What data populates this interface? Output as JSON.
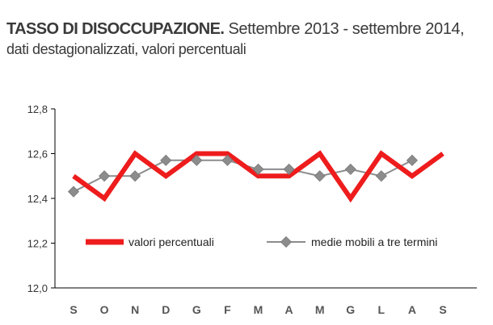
{
  "header": {
    "title_bold": "TASSO DI DISOCCUPAZIONE.",
    "title_rest": " Settembre 2013 - settembre 2014,",
    "subtitle": "dati destagionalizzati, valori percentuali"
  },
  "colors": {
    "percent_series": "#ee1c1c",
    "moving_avg_series": "#8c8c8c",
    "axis": "#000000"
  },
  "chart_data": {
    "type": "line",
    "title": "TASSO DI DISOCCUPAZIONE. Settembre 2013 - settembre 2014, dati destagionalizzati, valori percentuali",
    "categories": [
      "S",
      "O",
      "N",
      "D",
      "G",
      "F",
      "M",
      "A",
      "M",
      "G",
      "L",
      "A",
      "S"
    ],
    "ylim": [
      12.0,
      12.8
    ],
    "yticks": [
      12.0,
      12.2,
      12.4,
      12.6,
      12.8
    ],
    "ytick_labels": [
      "12,0",
      "12,2",
      "12,4",
      "12,6",
      "12,8"
    ],
    "grid": false,
    "legend": "center",
    "series": [
      {
        "name": "valori percentuali",
        "values": [
          12.5,
          12.4,
          12.6,
          12.5,
          12.6,
          12.6,
          12.5,
          12.5,
          12.6,
          12.4,
          12.6,
          12.5,
          12.6
        ]
      },
      {
        "name": "medie mobili a tre termini",
        "values": [
          12.43,
          12.5,
          12.5,
          12.57,
          12.57,
          12.57,
          12.53,
          12.53,
          12.5,
          12.53,
          12.5,
          12.57,
          null
        ]
      }
    ]
  }
}
